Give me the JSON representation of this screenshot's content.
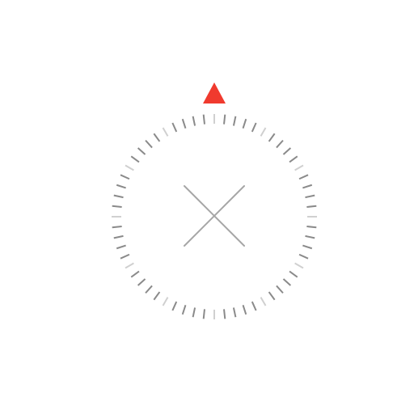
{
  "compass": {
    "heading_deg": 0,
    "tick_count": 60,
    "colors": {
      "background": "#ffffff",
      "north_marker": "#f03a2e",
      "tick": "#8a8a8a",
      "tick_cardinal": "#d0d0d0",
      "center_cross": "#a6a6a6"
    },
    "icons": {
      "north_marker": "north-triangle-icon",
      "center": "close-x-icon"
    }
  }
}
